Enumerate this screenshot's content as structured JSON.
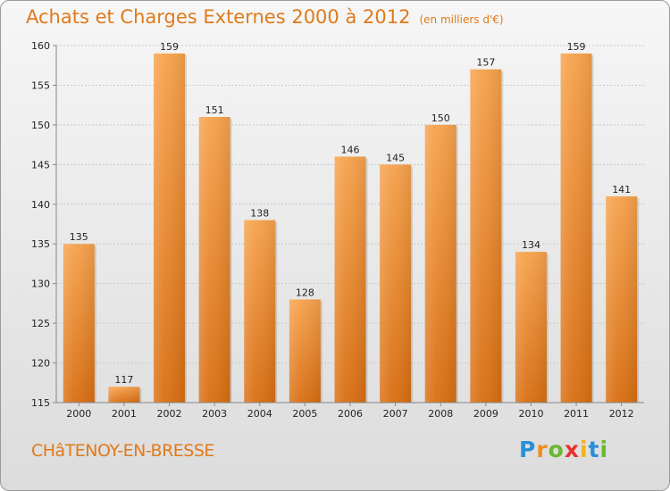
{
  "title": "Achats et Charges Externes 2000 à 2012",
  "subtitle": "(en milliers d'€)",
  "commune": "CHâTENOY-EN-BRESSE",
  "logo": {
    "letters": [
      "P",
      "r",
      "o",
      "x",
      "i",
      "t",
      "i"
    ],
    "colors": [
      "#2a8fd8",
      "#f08c1e",
      "#6ab82e",
      "#e8332a",
      "#f2b21c",
      "#2a8fd8",
      "#6ab82e"
    ]
  },
  "colors": {
    "bar_top": "#f6a24c",
    "bar_bottom": "#d96e12",
    "accent": "#e07a1a"
  },
  "chart_data": {
    "type": "bar",
    "categories": [
      "2000",
      "2001",
      "2002",
      "2003",
      "2004",
      "2005",
      "2006",
      "2007",
      "2008",
      "2009",
      "2010",
      "2011",
      "2012"
    ],
    "values": [
      135,
      117,
      159,
      151,
      138,
      128,
      146,
      145,
      150,
      157,
      134,
      159,
      141
    ],
    "ylim": [
      115,
      160
    ],
    "yticks": [
      115,
      120,
      125,
      130,
      135,
      140,
      145,
      150,
      155,
      160
    ],
    "grid": true,
    "xlabel": "",
    "ylabel": ""
  }
}
